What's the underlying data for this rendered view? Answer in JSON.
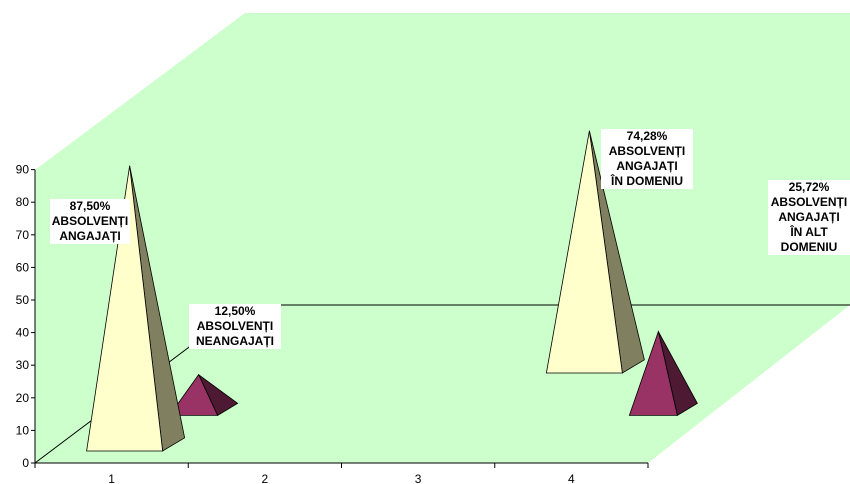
{
  "chart_data": {
    "type": "bar",
    "style": "3d-pyramid",
    "categories": [
      "1",
      "2",
      "3",
      "4"
    ],
    "ylim": [
      0,
      90
    ],
    "yticks": [
      0,
      10,
      20,
      30,
      40,
      50,
      60,
      70,
      80,
      90
    ],
    "grid": false,
    "series": [
      {
        "values": [
          87.5,
          null,
          null,
          74.28
        ]
      },
      {
        "values": [
          12.5,
          null,
          null,
          25.72
        ]
      }
    ],
    "data_labels": [
      {
        "text": "87,50%\nABSOLVENȚI\nANGAJAȚI"
      },
      {
        "text": "12,50%\nABSOLVENȚI\nNEANGAJAȚI"
      },
      {
        "text": "74,28%\nABSOLVENȚI\nANGAJAȚI\nÎN DOMENIU"
      },
      {
        "text": "25,72%\nABSOLVENȚI\nANGAJAȚI\nÎN ALT\nDOMENIU"
      }
    ],
    "colors": {
      "plane": "#ccffcc",
      "primary_front": "#ffffcc",
      "primary_side": "#808060",
      "secondary_front": "#993366",
      "secondary_side": "#4d1933",
      "axis": "#000000"
    }
  }
}
